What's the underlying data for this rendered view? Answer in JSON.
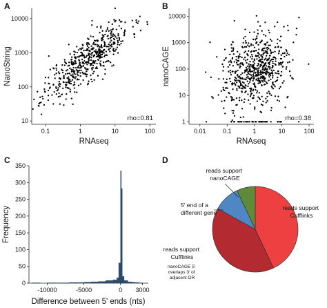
{
  "panels": {
    "A": "A",
    "B": "B",
    "C": "C",
    "D": "D"
  },
  "colors": {
    "points": "#000000",
    "histogram": "#2f4f6e",
    "pie_red": "#ee4040",
    "pie_darkred": "#b32a30",
    "pie_blue": "#4e87c4",
    "pie_green": "#5f8a3a"
  },
  "chart_data": [
    {
      "id": "A",
      "type": "scatter",
      "xlabel": "RNAseq",
      "ylabel": "NanoString",
      "xscale": "log",
      "yscale": "log",
      "xlim": [
        0.04,
        150
      ],
      "ylim": [
        8,
        20000
      ],
      "xticks": [
        0.1,
        1,
        10,
        100
      ],
      "xtick_labels": [
        "0.1",
        "1",
        "10",
        "100"
      ],
      "yticks": [
        10,
        100,
        1000,
        10000
      ],
      "ytick_labels": [
        "10",
        "100",
        "1000",
        "10000"
      ],
      "annotation": "rho=0.81",
      "rho": 0.81,
      "approx_points": 550
    },
    {
      "id": "B",
      "type": "scatter",
      "xlabel": "RNAseq",
      "ylabel": "nanoCAGE",
      "xscale": "log",
      "yscale": "log",
      "xlim": [
        0.004,
        150
      ],
      "ylim": [
        0.8,
        20000
      ],
      "xticks": [
        0.01,
        0.1,
        1,
        10,
        100
      ],
      "xtick_labels": [
        "0.01",
        "0.1",
        "1",
        "10",
        "100"
      ],
      "yticks": [
        1,
        10,
        100,
        1000,
        10000
      ],
      "ytick_labels": [
        "1",
        "10",
        "100",
        "1000",
        "10000"
      ],
      "annotation": "rho=0.38",
      "rho": 0.38,
      "approx_points": 700
    },
    {
      "id": "C",
      "type": "histogram",
      "xlabel": "Difference between 5' ends (nts)",
      "ylabel": "Frequency",
      "xlim": [
        -12500,
        3800
      ],
      "ylim": [
        0,
        350
      ],
      "xticks": [
        -10000,
        -5000,
        0,
        3000
      ],
      "xtick_labels": [
        "-10000",
        "-5000",
        "0",
        "3000"
      ],
      "yticks": [
        0,
        50,
        100,
        150,
        200,
        250,
        300,
        350
      ],
      "ytick_labels": [
        "0",
        "50",
        "100",
        "150",
        "200",
        "250",
        "300",
        "350"
      ],
      "bins": [
        {
          "x0": -12000,
          "x1": -11000,
          "count": 1
        },
        {
          "x0": -11000,
          "x1": -10000,
          "count": 0
        },
        {
          "x0": -10000,
          "x1": -9000,
          "count": 1
        },
        {
          "x0": -9000,
          "x1": -8000,
          "count": 1
        },
        {
          "x0": -8000,
          "x1": -7000,
          "count": 1
        },
        {
          "x0": -7000,
          "x1": -6000,
          "count": 2
        },
        {
          "x0": -6000,
          "x1": -5000,
          "count": 2
        },
        {
          "x0": -5000,
          "x1": -4000,
          "count": 3
        },
        {
          "x0": -4000,
          "x1": -3000,
          "count": 4
        },
        {
          "x0": -3000,
          "x1": -2000,
          "count": 5
        },
        {
          "x0": -2000,
          "x1": -1000,
          "count": 8
        },
        {
          "x0": -1000,
          "x1": -500,
          "count": 10
        },
        {
          "x0": -500,
          "x1": -250,
          "count": 16
        },
        {
          "x0": -250,
          "x1": 0,
          "count": 60
        },
        {
          "x0": 0,
          "x1": 120,
          "count": 335
        },
        {
          "x0": 120,
          "x1": 250,
          "count": 282
        },
        {
          "x0": 250,
          "x1": 500,
          "count": 20
        },
        {
          "x0": 500,
          "x1": 1000,
          "count": 8
        },
        {
          "x0": 1000,
          "x1": 1500,
          "count": 4
        },
        {
          "x0": 1500,
          "x1": 2000,
          "count": 3
        },
        {
          "x0": 2000,
          "x1": 2500,
          "count": 2
        },
        {
          "x0": 2500,
          "x1": 3000,
          "count": 1
        }
      ]
    },
    {
      "id": "D",
      "type": "pie",
      "slices": [
        {
          "label": "reads support Cufflinks",
          "value": 43,
          "color": "#ee4040"
        },
        {
          "label": "reads support Cufflinks",
          "note": "nanoCAGE 5' overlaps 3' of adjacent OR",
          "value": 40,
          "color": "#b32a30"
        },
        {
          "label": "5' end of a different gene",
          "value": 10,
          "color": "#4e87c4"
        },
        {
          "label": "reads support nanoCAGE",
          "value": 7,
          "color": "#5f8a3a"
        }
      ],
      "labels": {
        "right": "reads support\nCufflinks",
        "bottom_left": "reads support\nCufflinks",
        "note": "nanoCAGE 5'\noverlaps 3' of\nadjacent OR",
        "blue": "5' end of a\ndifferent gene",
        "green": "reads support\nnanoCAGE"
      }
    }
  ]
}
